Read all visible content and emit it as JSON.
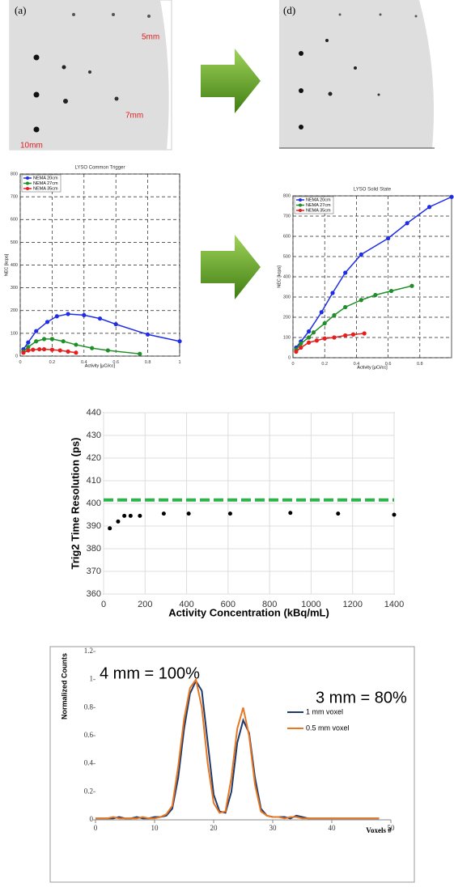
{
  "phantoms": {
    "left": {
      "label": "(a)",
      "annotations": [
        "5mm",
        "7mm",
        "10mm"
      ]
    },
    "right": {
      "label": "(d)"
    }
  },
  "chart_data": [
    {
      "type": "line",
      "title": "LYSO Common Trigger",
      "x_label": "Activity [µCi/cc]",
      "y_label": "NEC [kcps]",
      "xlim": [
        0,
        1
      ],
      "xticks": [
        0,
        0.2,
        0.4,
        0.6,
        0.8,
        1
      ],
      "ylim": [
        0,
        800
      ],
      "yticks": [
        0,
        100,
        200,
        300,
        400,
        500,
        600,
        700,
        800
      ],
      "grid": "dashed",
      "markers": true,
      "legend": "top-left",
      "series": [
        {
          "name": "NEMA 20cm",
          "color": "#1f2ee6",
          "x": [
            0.02,
            0.05,
            0.1,
            0.17,
            0.23,
            0.3,
            0.4,
            0.5,
            0.6,
            0.8,
            1.0
          ],
          "values": [
            30,
            60,
            110,
            150,
            175,
            185,
            180,
            165,
            140,
            95,
            65
          ]
        },
        {
          "name": "NEMA 27cm",
          "color": "#1f8f2a",
          "x": [
            0.02,
            0.05,
            0.1,
            0.15,
            0.2,
            0.27,
            0.35,
            0.45,
            0.55,
            0.75
          ],
          "values": [
            20,
            40,
            65,
            75,
            75,
            65,
            50,
            35,
            25,
            10
          ]
        },
        {
          "name": "NEMA 35cm",
          "color": "#e61e1e",
          "x": [
            0.02,
            0.05,
            0.08,
            0.12,
            0.15,
            0.2,
            0.25,
            0.3,
            0.35
          ],
          "values": [
            15,
            25,
            28,
            30,
            30,
            28,
            25,
            20,
            15
          ]
        }
      ]
    },
    {
      "type": "line",
      "title": "LYSO Solid State",
      "x_label": "Activity [µCi/cc]",
      "y_label": "NEC [kcps]",
      "xlim": [
        0,
        1
      ],
      "xticks": [
        0,
        0.2,
        0.4,
        0.6,
        0.8
      ],
      "ylim": [
        0,
        800
      ],
      "yticks": [
        0,
        100,
        200,
        300,
        400,
        500,
        600,
        700,
        800
      ],
      "grid": "dashed",
      "markers": true,
      "legend": "top-left",
      "series": [
        {
          "name": "NEMA 20cm",
          "color": "#1f2ee6",
          "x": [
            0.02,
            0.05,
            0.1,
            0.18,
            0.25,
            0.33,
            0.43,
            0.6,
            0.72,
            0.86,
            1.0
          ],
          "values": [
            50,
            80,
            130,
            225,
            320,
            420,
            510,
            590,
            665,
            745,
            795
          ]
        },
        {
          "name": "NEMA 27cm",
          "color": "#1f8f2a",
          "x": [
            0.02,
            0.05,
            0.1,
            0.13,
            0.2,
            0.26,
            0.33,
            0.43,
            0.52,
            0.62,
            0.75
          ],
          "values": [
            40,
            70,
            100,
            125,
            170,
            210,
            250,
            285,
            310,
            330,
            355
          ]
        },
        {
          "name": "NEMA 35cm",
          "color": "#e61e1e",
          "x": [
            0.02,
            0.05,
            0.1,
            0.15,
            0.2,
            0.26,
            0.33,
            0.38,
            0.45
          ],
          "values": [
            30,
            50,
            75,
            85,
            95,
            100,
            110,
            115,
            120
          ]
        }
      ]
    },
    {
      "type": "scatter",
      "x_label": "Activity Concentration (kBq/mL)",
      "y_label": "Trig2 Time Resolution (ps)",
      "xlim": [
        0,
        1400
      ],
      "xticks": [
        0,
        200,
        400,
        600,
        800,
        1000,
        1200,
        1400
      ],
      "ylim": [
        360,
        440
      ],
      "yticks": [
        360,
        370,
        380,
        390,
        400,
        410,
        420,
        430,
        440
      ],
      "grid": "solid",
      "color": "#000000",
      "x": [
        30,
        70,
        100,
        130,
        175,
        290,
        410,
        610,
        900,
        1130,
        1400
      ],
      "values": [
        389,
        392,
        394.5,
        394.5,
        394.5,
        395.5,
        395.5,
        395.5,
        395.8,
        395.5,
        395
      ],
      "reference_line": {
        "value": 401.5,
        "color": "#2db34a",
        "style": "dashed"
      }
    },
    {
      "type": "line",
      "x_label": "Voxels #",
      "y_label": "Normalized Counts",
      "annotations": [
        "4 mm = 100%",
        "3 mm = 80%"
      ],
      "xlim": [
        0,
        50
      ],
      "xticks": [
        0,
        10,
        20,
        30,
        40,
        50
      ],
      "ylim": [
        0,
        1.2
      ],
      "yticks": [
        0,
        0.2,
        0.4,
        0.6,
        0.8,
        1,
        1.2
      ],
      "grid": "none",
      "markers": false,
      "legend": "right",
      "x": [
        0,
        1,
        2,
        3,
        4,
        5,
        6,
        7,
        8,
        9,
        10,
        11,
        12,
        13,
        14,
        15,
        16,
        17,
        18,
        19,
        20,
        21,
        22,
        23,
        24,
        25,
        26,
        27,
        28,
        29,
        30,
        31,
        32,
        33,
        34,
        35,
        36,
        37,
        38,
        39,
        40,
        41,
        42,
        43,
        44,
        45,
        46,
        47,
        48
      ],
      "series": [
        {
          "name": "1 mm voxel",
          "color": "#1f3b6e",
          "values": [
            0.01,
            0.01,
            0.01,
            0.01,
            0.02,
            0.01,
            0.01,
            0.02,
            0.01,
            0.01,
            0.02,
            0.02,
            0.03,
            0.08,
            0.3,
            0.65,
            0.9,
            0.99,
            0.92,
            0.55,
            0.18,
            0.06,
            0.05,
            0.2,
            0.55,
            0.71,
            0.62,
            0.3,
            0.08,
            0.03,
            0.02,
            0.02,
            0.02,
            0.01,
            0.03,
            0.02,
            0.01,
            0.01,
            0.01,
            0.01,
            0.01,
            0.01,
            0.01,
            0.01,
            0.01,
            0.01,
            0.01,
            0.01,
            0.01
          ]
        },
        {
          "name": "0.5 mm voxel",
          "color": "#e87722",
          "values": [
            0.01,
            0.01,
            0.01,
            0.02,
            0.01,
            0.01,
            0.01,
            0.01,
            0.02,
            0.01,
            0.01,
            0.02,
            0.04,
            0.1,
            0.38,
            0.72,
            0.94,
            1.0,
            0.8,
            0.4,
            0.12,
            0.05,
            0.06,
            0.3,
            0.65,
            0.8,
            0.6,
            0.25,
            0.06,
            0.03,
            0.02,
            0.02,
            0.01,
            0.02,
            0.02,
            0.01,
            0.01,
            0.01,
            0.01,
            0.01,
            0.01,
            0.01,
            0.01,
            0.01,
            0.01,
            0.01,
            0.01,
            0.01,
            0.01
          ]
        }
      ]
    }
  ]
}
